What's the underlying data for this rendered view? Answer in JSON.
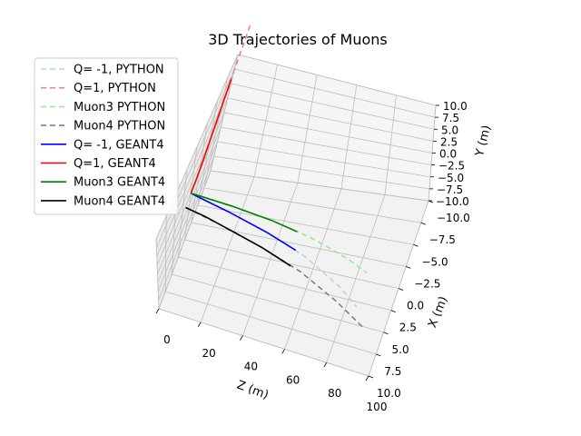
{
  "chart_data": {
    "type": "line",
    "projection": "3d",
    "title": "3D Trajectories of Muons",
    "xlabel": "Z (m)",
    "ylabel": "X (m)",
    "zlabel": "Y (m)",
    "zaxis_ticks": [
      "0",
      "20",
      "40",
      "60",
      "80",
      "100"
    ],
    "xaxis_ticks": [
      "−10.0",
      "−7.5",
      "−5.0",
      "−2.5",
      "0.0",
      "2.5",
      "5.0",
      "7.5",
      "10.0"
    ],
    "yaxis_ticks": [
      "−10.0",
      "−7.5",
      "−5.0",
      "−2.5",
      "0.0",
      "2.5",
      "5.0",
      "7.5",
      "10.0"
    ],
    "grid": true,
    "legend_position": "upper-left",
    "series": [
      {
        "name": "Q= -1, PYTHON",
        "color": "#add8e6",
        "style": "dashed",
        "points": [
          [
            0,
            0,
            0
          ],
          [
            20,
            1.1,
            -0.1
          ],
          [
            40,
            2.3,
            -0.3
          ],
          [
            60,
            3.8,
            -0.6
          ],
          [
            80,
            6.0,
            -1.0
          ],
          [
            90,
            7.5,
            -1.3
          ]
        ]
      },
      {
        "name": "Q=1, PYTHON",
        "color": "#f08080",
        "style": "dashed",
        "points": [
          [
            0,
            0,
            0
          ],
          [
            0,
            -1.5,
            0.2
          ],
          [
            0,
            -3.4,
            1.1
          ],
          [
            0,
            -6,
            3
          ],
          [
            0,
            -9.5,
            6.5
          ],
          [
            0,
            -13,
            10.8
          ]
        ]
      },
      {
        "name": "Muon3 PYTHON",
        "color": "#90ee90",
        "style": "dashed",
        "points": [
          [
            0,
            0,
            0
          ],
          [
            20,
            0.4,
            0
          ],
          [
            40,
            1.0,
            0
          ],
          [
            60,
            1.9,
            0
          ],
          [
            80,
            3.3,
            0
          ],
          [
            90,
            4.3,
            0
          ]
        ]
      },
      {
        "name": "Muon4 PYTHON",
        "color": "#808080",
        "style": "dashed",
        "points": [
          [
            0,
            1.5,
            -0.5
          ],
          [
            20,
            2.6,
            -0.6
          ],
          [
            40,
            3.8,
            -0.9
          ],
          [
            60,
            5.2,
            -1.3
          ],
          [
            80,
            7.2,
            -1.8
          ],
          [
            95,
            9.0,
            -2.2
          ]
        ]
      },
      {
        "name": "Q= -1, GEANT4",
        "color": "#0000ff",
        "style": "solid",
        "points": [
          [
            0,
            0,
            0
          ],
          [
            5,
            0.3,
            0
          ],
          [
            20,
            1.1,
            -0.1
          ],
          [
            40,
            2.3,
            -0.3
          ],
          [
            55,
            3.4,
            -0.5
          ]
        ]
      },
      {
        "name": "Q=1, GEANT4",
        "color": "#ff0000",
        "style": "solid",
        "points": [
          [
            0,
            0,
            0
          ],
          [
            0,
            -1.5,
            0.2
          ],
          [
            0,
            -3.4,
            1.1
          ],
          [
            0,
            -6,
            3
          ],
          [
            0,
            -9.5,
            6.5
          ]
        ]
      },
      {
        "name": "Muon3 GEANT4",
        "color": "#008000",
        "style": "solid",
        "points": [
          [
            0,
            0,
            0
          ],
          [
            5,
            0.1,
            0
          ],
          [
            20,
            0.4,
            0
          ],
          [
            40,
            1.0,
            0
          ],
          [
            53,
            1.6,
            0
          ]
        ]
      },
      {
        "name": "Muon4 GEANT4",
        "color": "#000000",
        "style": "solid",
        "points": [
          [
            0,
            1.5,
            -0.5
          ],
          [
            10,
            2.0,
            -0.5
          ],
          [
            25,
            2.9,
            -0.7
          ],
          [
            40,
            3.8,
            -0.9
          ],
          [
            55,
            4.9,
            -1.2
          ]
        ]
      }
    ]
  }
}
